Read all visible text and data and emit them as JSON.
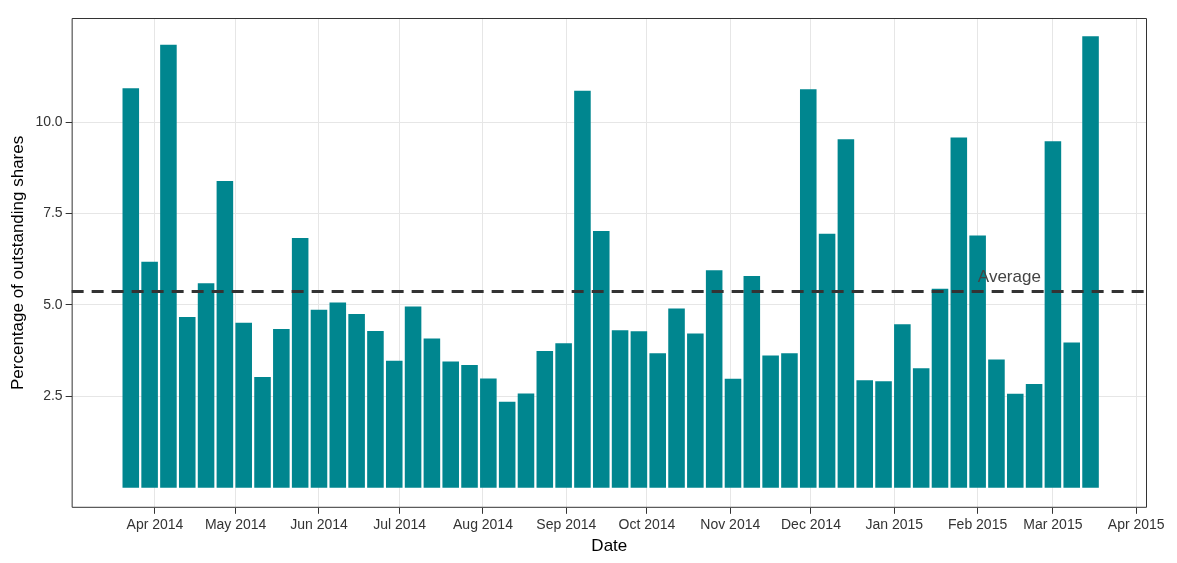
{
  "chart_data": {
    "type": "bar",
    "xlabel": "Date",
    "ylabel": "Percentage of outstanding shares",
    "x": [
      "2014-03-23",
      "2014-03-30",
      "2014-04-06",
      "2014-04-13",
      "2014-04-20",
      "2014-04-27",
      "2014-05-04",
      "2014-05-11",
      "2014-05-18",
      "2014-05-25",
      "2014-06-01",
      "2014-06-08",
      "2014-06-15",
      "2014-06-22",
      "2014-06-29",
      "2014-07-06",
      "2014-07-13",
      "2014-07-20",
      "2014-07-27",
      "2014-08-03",
      "2014-08-10",
      "2014-08-17",
      "2014-08-24",
      "2014-08-31",
      "2014-09-07",
      "2014-09-14",
      "2014-09-21",
      "2014-09-28",
      "2014-10-05",
      "2014-10-12",
      "2014-10-19",
      "2014-10-26",
      "2014-11-02",
      "2014-11-09",
      "2014-11-16",
      "2014-11-23",
      "2014-11-30",
      "2014-12-07",
      "2014-12-14",
      "2014-12-21",
      "2014-12-28",
      "2015-01-04",
      "2015-01-11",
      "2015-01-18",
      "2015-01-25",
      "2015-02-01",
      "2015-02-08",
      "2015-02-15",
      "2015-02-22",
      "2015-03-01",
      "2015-03-08",
      "2015-03-15"
    ],
    "values": [
      10.93,
      6.18,
      12.12,
      4.67,
      5.59,
      8.39,
      4.51,
      3.03,
      4.34,
      6.83,
      4.87,
      5.07,
      4.75,
      4.29,
      3.47,
      4.96,
      4.08,
      3.45,
      3.36,
      2.99,
      2.35,
      2.58,
      3.74,
      3.95,
      10.86,
      7.02,
      4.31,
      4.28,
      3.68,
      4.9,
      4.22,
      5.95,
      2.98,
      5.79,
      3.62,
      3.68,
      10.9,
      6.95,
      9.53,
      2.94,
      2.91,
      4.47,
      3.27,
      5.44,
      9.58,
      6.9,
      3.51,
      2.57,
      2.84,
      9.48,
      3.97,
      12.35
    ],
    "color": "#00868f",
    "xlim": [
      "2014-03-01",
      "2015-04-05"
    ],
    "xticks": [
      {
        "value": "2014-04-01",
        "label": "Apr 2014"
      },
      {
        "value": "2014-05-01",
        "label": "May 2014"
      },
      {
        "value": "2014-06-01",
        "label": "Jun 2014"
      },
      {
        "value": "2014-07-01",
        "label": "Jul 2014"
      },
      {
        "value": "2014-08-01",
        "label": "Aug 2014"
      },
      {
        "value": "2014-09-01",
        "label": "Sep 2014"
      },
      {
        "value": "2014-10-01",
        "label": "Oct 2014"
      },
      {
        "value": "2014-11-01",
        "label": "Nov 2014"
      },
      {
        "value": "2014-12-01",
        "label": "Dec 2014"
      },
      {
        "value": "2015-01-01",
        "label": "Jan 2015"
      },
      {
        "value": "2015-02-01",
        "label": "Feb 2015"
      },
      {
        "value": "2015-03-01",
        "label": "Mar 2015"
      },
      {
        "value": "2015-04-01",
        "label": "Apr 2015"
      }
    ],
    "ylim": [
      -0.55,
      12.85
    ],
    "yticks": [
      {
        "value": 2.5,
        "label": "2.5"
      },
      {
        "value": 5,
        "label": "5.0"
      },
      {
        "value": 7.5,
        "label": "7.5"
      },
      {
        "value": 10,
        "label": "10.0"
      }
    ],
    "grid": true,
    "ref_lines": [
      {
        "axis": "y",
        "value": 5.37,
        "label": "Average",
        "color": "#333333",
        "line_style": "dashed"
      }
    ]
  }
}
